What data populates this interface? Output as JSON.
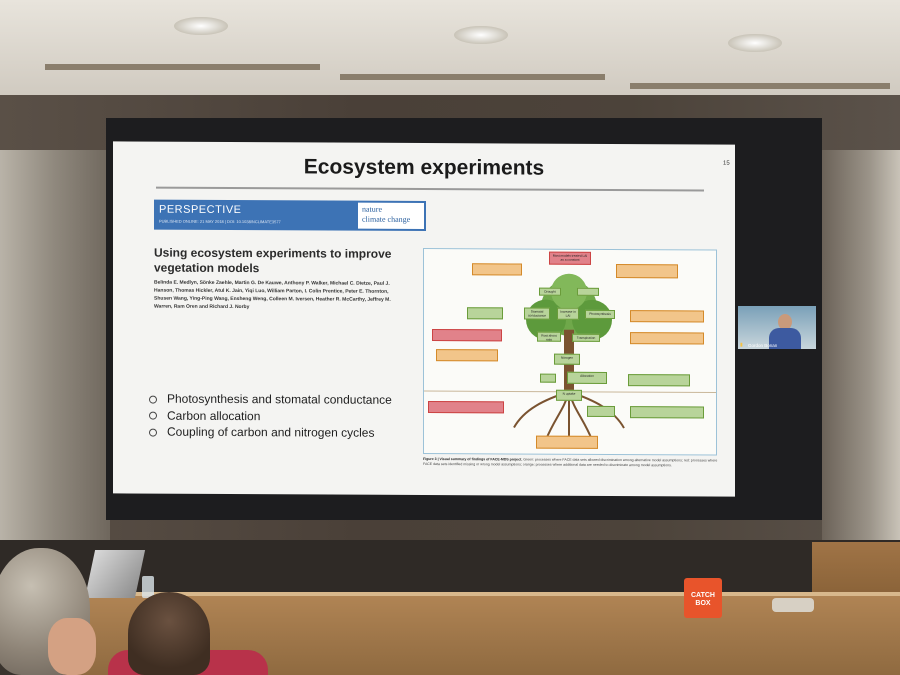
{
  "slide": {
    "title": "Ecosystem experiments",
    "page_number": "15",
    "banner": {
      "kicker": "PERSPECTIVE",
      "subline": "PUBLISHED ONLINE: 21 MAY 2018 | DOI: 10.1038/NCLIMATE3577",
      "journal_line1": "nature",
      "journal_line2": "climate change"
    },
    "paper_title": "Using ecosystem experiments to improve vegetation models",
    "authors": "Belinda E. Medlyn, Sönke Zaehle, Martin G. De Kauwe, Anthony P. Walker, Michael C. Dietze, Paul J. Hanson, Thomas Hickler, Atul K. Jain, Yiqi Luo, William Parton, I. Colin Prentice, Peter E. Thornton, Shusen Wang, Ying-Ping Wang, Ensheng Weng, Colleen M. Iversen, Heather R. McCarthy, Jeffrey M. Warren, Ram Oren and Richard J. Norby",
    "bullets": [
      "Photosynthesis and stomatal conductance",
      "Carbon allocation",
      "Coupling of carbon and nitrogen cycles"
    ],
    "figure": {
      "boxes": {
        "top": "Most models treated LAI as a constant",
        "drought": "Drought",
        "stomatal": "Stomatal conductance",
        "increase_lai": "Increase in LAI",
        "photosynthesis": "Photosynthesis",
        "transpiration": "Transpiration",
        "root_to_shoot": "Root:shoot ratio",
        "nitrogen": "Nitrogen",
        "allocation": "Allocation",
        "nuptake": "N uptake"
      },
      "caption_bold": "Figure 3 | Visual summary of findings of FACE-MDS project.",
      "caption_rest": "Green: processes where FACE data sets allowed discrimination among alternative model assumptions; red: processes where FACE data sets identified missing or wrong model assumptions; orange: processes where additional data are needed to discriminate among model assumptions."
    }
  },
  "webcam": {
    "name": "Gordon Bonan"
  },
  "catchbox": {
    "line1": "CATCH",
    "line2": "BOX"
  },
  "colors": {
    "banner": "#3d73b5",
    "catchbox": "#e8542b",
    "figure_red": "#e1828a",
    "figure_orange": "#f2c58a",
    "figure_green": "#b8d49a"
  }
}
